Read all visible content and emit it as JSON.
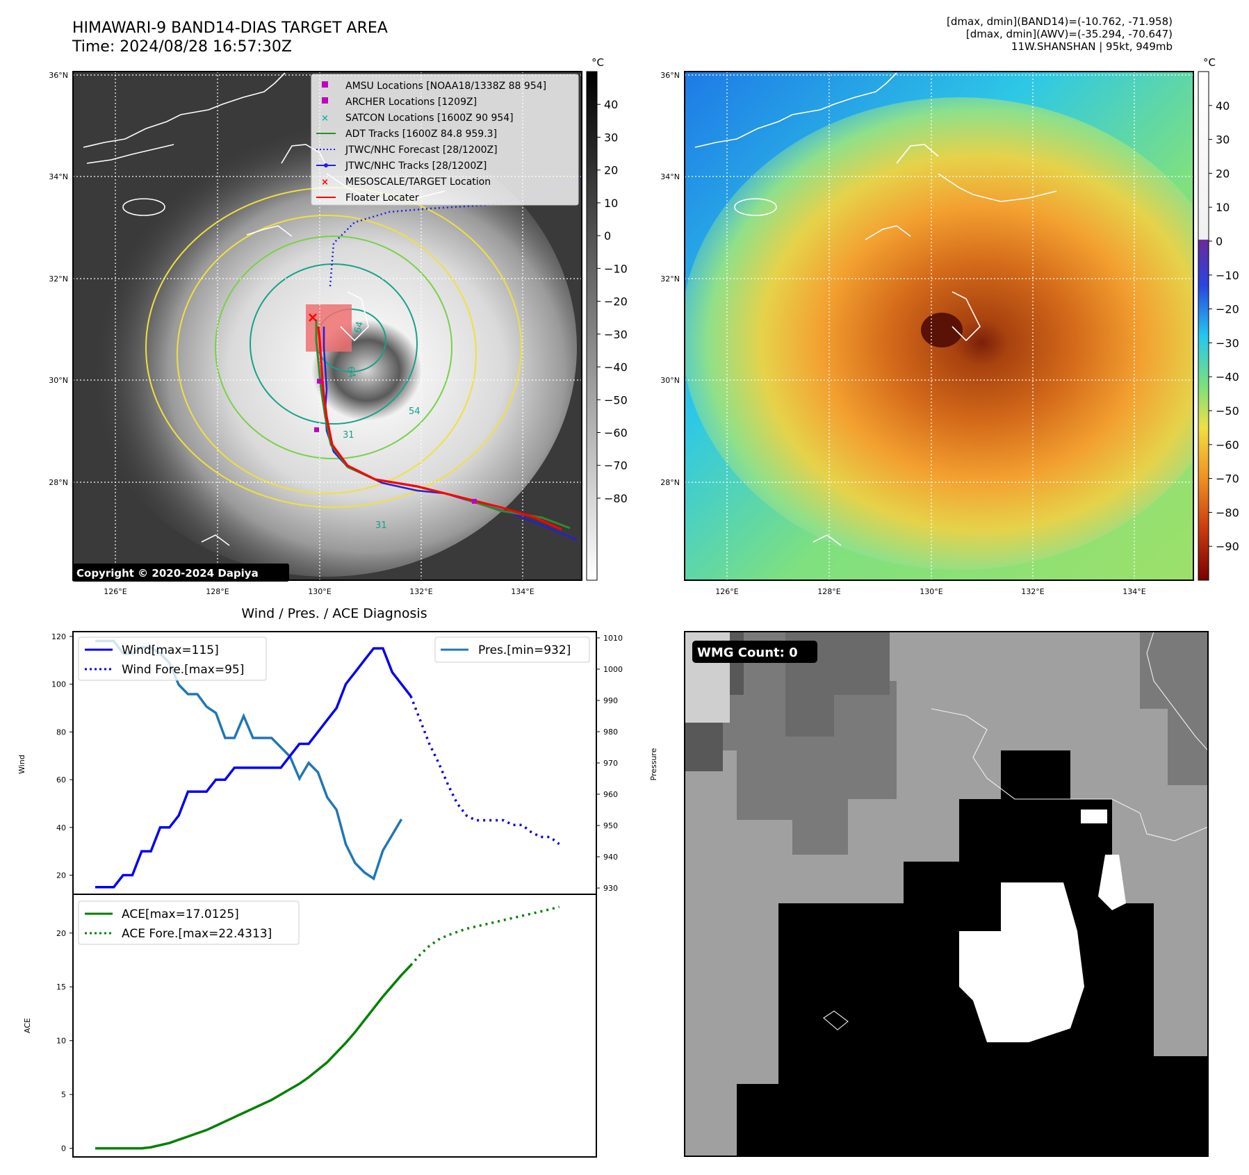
{
  "header": {
    "title": "HIMAWARI-9 BAND14-DIAS TARGET AREA",
    "time": "Time: 2024/08/28 16:57:30Z",
    "info": [
      "[dmax, dmin](BAND14)=(-10.762, -71.958)",
      "[dmax, dmin](AWV)=(-35.294, -70.647)",
      "11W.SHANSHAN | 95kt, 949mb"
    ]
  },
  "maps": {
    "lat_ticks": [
      "36°N",
      "34°N",
      "32°N",
      "30°N",
      "28°N"
    ],
    "lon_ticks": [
      "126°E",
      "128°E",
      "130°E",
      "132°E",
      "134°E"
    ],
    "unit": "°C",
    "copyright": "Copyright © 2020-2024 Dapiya",
    "ir_colorbar_ticks": [
      "40",
      "30",
      "20",
      "10",
      "0",
      "−10",
      "−20",
      "−30",
      "−40",
      "−50",
      "−60",
      "−70",
      "−80"
    ],
    "awv_colorbar_ticks": [
      "40",
      "30",
      "20",
      "10",
      "0",
      "−10",
      "−20",
      "−30",
      "−40",
      "−50",
      "−60",
      "−70",
      "−80",
      "−90"
    ],
    "contour_labels": [
      "64",
      "64",
      "54",
      "31",
      "31"
    ],
    "legend": [
      {
        "label": "AMSU Locations [NOAA18/1338Z 88 954]",
        "marker": "square",
        "color": "#c000c0"
      },
      {
        "label": "ARCHER Locations [1209Z]",
        "marker": "square",
        "color": "#c000c0"
      },
      {
        "label": "SATCON Locations [1600Z 90 954]",
        "marker": "x",
        "color": "#20b0b0"
      },
      {
        "label": "ADT Tracks [1600Z 84.8 959.3]",
        "marker": "line",
        "color": "#2e8b2e"
      },
      {
        "label": "JTWC/NHC Forecast [28/1200Z]",
        "marker": "dotted",
        "color": "#2020e0"
      },
      {
        "label": "JTWC/NHC Tracks [28/1200Z]",
        "marker": "line-dot",
        "color": "#2020e0"
      },
      {
        "label": "MESOSCALE/TARGET Location",
        "marker": "x",
        "color": "#ff0000"
      },
      {
        "label": "Floater Locater",
        "marker": "line",
        "color": "#ff0000"
      }
    ]
  },
  "wind_panel": {
    "title": "Wind / Pres. / ACE Diagnosis",
    "ylabel_left": "Wind",
    "ylabel_right": "Pressure",
    "wind_ticks": [
      "120",
      "100",
      "80",
      "60",
      "40",
      "20"
    ],
    "pres_ticks": [
      "1010",
      "1000",
      "990",
      "980",
      "970",
      "960",
      "950",
      "940",
      "930"
    ],
    "legend_left": [
      "Wind[max=115]",
      "Wind Fore.[max=95]"
    ],
    "legend_right": [
      "Pres.[min=932]"
    ]
  },
  "ace_panel": {
    "ylabel": "ACE",
    "ticks": [
      "20",
      "15",
      "10",
      "5",
      "0"
    ],
    "legend": [
      "ACE[max=17.0125]",
      "ACE Fore.[max=22.4313]"
    ]
  },
  "wmg": {
    "label": "WMG Count: 0"
  },
  "chart_data": [
    {
      "type": "line",
      "title": "Wind / Pres. / ACE Diagnosis",
      "ylabel": "Wind",
      "ylim": [
        12,
        122
      ],
      "series": [
        {
          "name": "Wind[max=115]",
          "color": "#0000ee",
          "style": "solid",
          "values": [
            15,
            15,
            15,
            20,
            20,
            30,
            30,
            40,
            40,
            45,
            55,
            55,
            55,
            60,
            60,
            65,
            65,
            65,
            65,
            65,
            65,
            70,
            75,
            75,
            80,
            85,
            90,
            100,
            105,
            110,
            115,
            115,
            105,
            100,
            95
          ]
        },
        {
          "name": "Wind Fore.[max=95]",
          "color": "#0000ee",
          "style": "dotted",
          "x_offset": 34,
          "values": [
            95,
            85,
            75,
            67,
            58,
            50,
            45,
            43,
            43,
            43,
            43,
            41,
            41,
            38,
            36,
            36,
            33
          ]
        }
      ]
    },
    {
      "type": "line",
      "ylabel": "Pressure",
      "ylim": [
        928,
        1012
      ],
      "series": [
        {
          "name": "Pres.[min=932]",
          "color": "#1f77b4",
          "style": "solid",
          "values": [
            1009,
            1009,
            1009,
            1005,
            1005,
            1007,
            1007,
            1005,
            1002,
            995,
            992,
            992,
            988,
            986,
            978,
            978,
            985,
            978,
            978,
            978,
            975,
            972,
            965,
            970,
            967,
            959,
            955,
            944,
            938,
            935,
            933,
            942,
            947,
            952
          ]
        }
      ]
    },
    {
      "type": "line",
      "ylabel": "ACE",
      "ylim": [
        -0.8,
        23.6
      ],
      "series": [
        {
          "name": "ACE[max=17.0125]",
          "color": "#008000",
          "style": "solid",
          "values": [
            0,
            0,
            0,
            0,
            0,
            0,
            0.1,
            0.3,
            0.5,
            0.8,
            1.1,
            1.4,
            1.7,
            2.1,
            2.5,
            2.9,
            3.3,
            3.7,
            4.1,
            4.5,
            5.0,
            5.5,
            6.0,
            6.6,
            7.3,
            8.0,
            8.9,
            9.8,
            10.8,
            11.9,
            13.0,
            14.1,
            15.1,
            16.1,
            17.0
          ]
        },
        {
          "name": "ACE Fore.[max=22.4313]",
          "color": "#008000",
          "style": "dotted",
          "x_offset": 34,
          "values": [
            17.0,
            18.0,
            18.8,
            19.4,
            19.8,
            20.1,
            20.4,
            20.6,
            20.8,
            21.0,
            21.2,
            21.4,
            21.6,
            21.8,
            22.0,
            22.2,
            22.43
          ]
        }
      ]
    }
  ]
}
